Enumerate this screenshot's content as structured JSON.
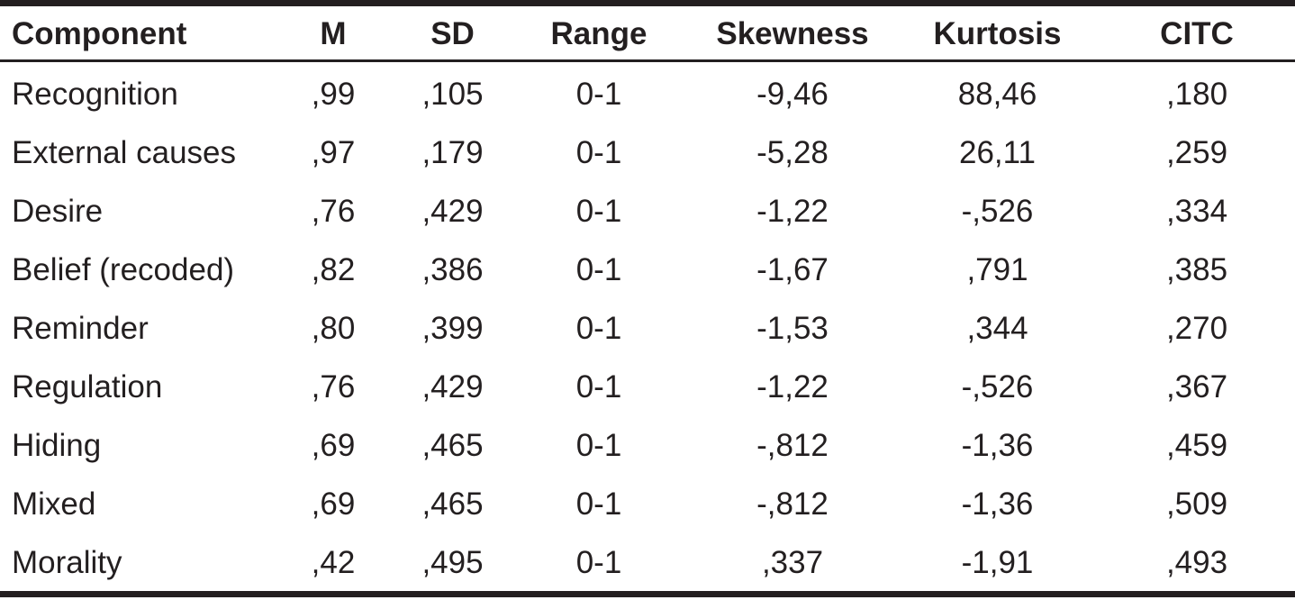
{
  "table": {
    "columns": [
      "Component",
      "M",
      "SD",
      "Range",
      "Skewness",
      "Kurtosis",
      "CITC"
    ],
    "rows": [
      [
        "Recognition",
        ",99",
        ",105",
        "0-1",
        "-9,46",
        "88,46",
        ",180"
      ],
      [
        "External causes",
        ",97",
        ",179",
        "0-1",
        "-5,28",
        "26,11",
        ",259"
      ],
      [
        "Desire",
        ",76",
        ",429",
        "0-1",
        "-1,22",
        "-,526",
        ",334"
      ],
      [
        "Belief (recoded)",
        ",82",
        ",386",
        "0-1",
        "-1,67",
        ",791",
        ",385"
      ],
      [
        "Reminder",
        ",80",
        ",399",
        "0-1",
        "-1,53",
        ",344",
        ",270"
      ],
      [
        "Regulation",
        ",76",
        ",429",
        "0-1",
        "-1,22",
        "-,526",
        ",367"
      ],
      [
        "Hiding",
        ",69",
        ",465",
        "0-1",
        "-,812",
        "-1,36",
        ",459"
      ],
      [
        "Mixed",
        ",69",
        ",465",
        "0-1",
        "-,812",
        "-1,36",
        ",509"
      ],
      [
        "Morality",
        ",42",
        ",495",
        "0-1",
        ",337",
        "-1,91",
        ",493"
      ]
    ]
  }
}
